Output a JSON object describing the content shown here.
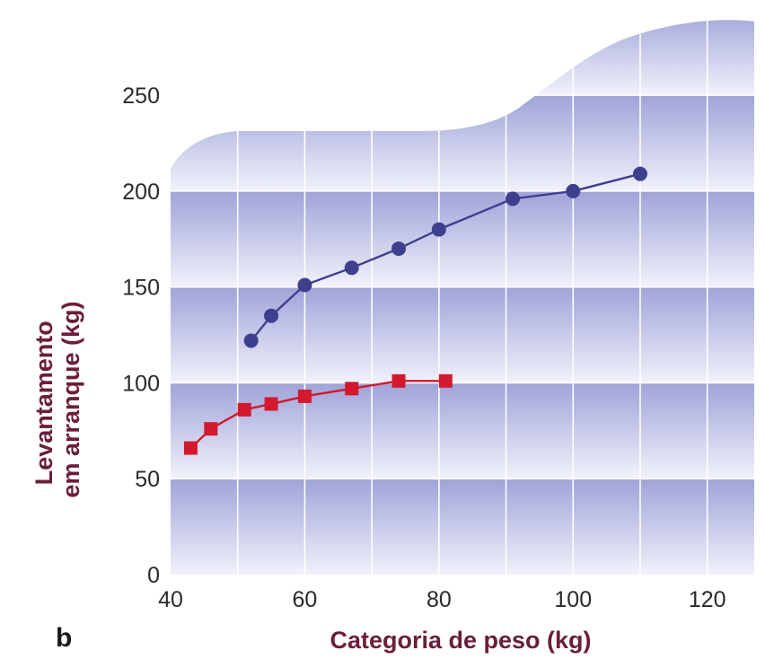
{
  "panel_label": "b",
  "colors": {
    "series_circle": "#3f3f8f",
    "series_square": "#d2192e",
    "axis_title": "#6b1e3c",
    "band_dark": "#9fa3d8",
    "band_light": "#f1f2fb",
    "grid": "#ffffff"
  },
  "chart_data": {
    "type": "line",
    "title": "",
    "xlabel": "Categoria de peso (kg)",
    "ylabel_lines": [
      "Levantamento",
      "em arranque (kg)"
    ],
    "xlim": [
      40,
      127
    ],
    "ylim": [
      0,
      295
    ],
    "xticks": [
      40,
      60,
      80,
      100,
      120
    ],
    "yticks": [
      0,
      50,
      100,
      150,
      200,
      250
    ],
    "grid": true,
    "series": [
      {
        "marker": "circle",
        "color": "#3f3f8f",
        "x": [
          52,
          55,
          60,
          67,
          74,
          80,
          91,
          100,
          110
        ],
        "y": [
          122,
          135,
          151,
          160,
          170,
          180,
          196,
          200,
          209
        ]
      },
      {
        "marker": "square",
        "color": "#d2192e",
        "x": [
          43,
          46,
          51,
          55,
          60,
          67,
          74,
          81
        ],
        "y": [
          66,
          76,
          86,
          89,
          93,
          97,
          101,
          101
        ]
      }
    ]
  }
}
